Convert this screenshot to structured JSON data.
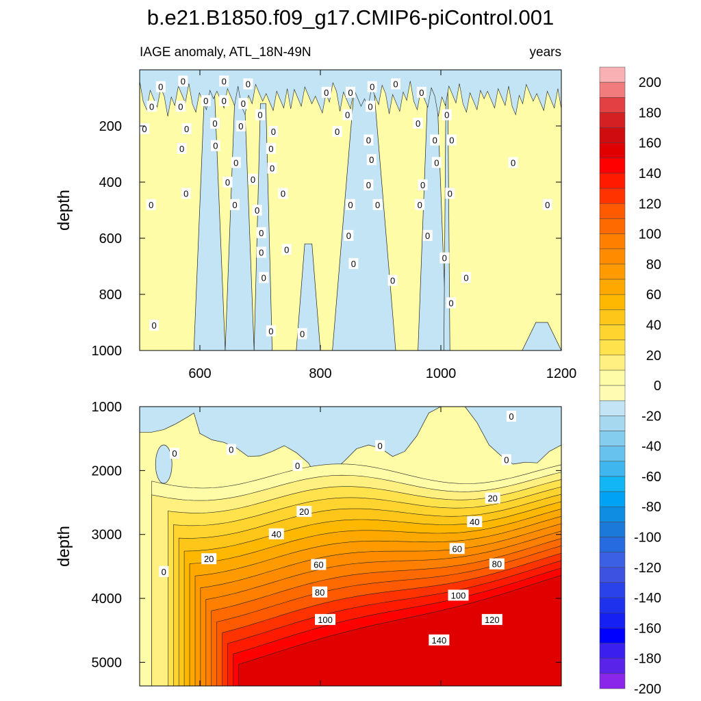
{
  "title": "b.e21.B1850.f09_g17.CMIP6-piControl.001",
  "chart_data": [
    {
      "type": "heatmap",
      "subtitle_left": "IAGE anomaly, ATL_18N-49N",
      "subtitle_right": "years",
      "ylabel": "depth",
      "xlim": [
        500,
        1200
      ],
      "x_ticks": [
        "600",
        "800",
        "1000",
        "1200"
      ],
      "ylim": [
        0,
        1000
      ],
      "y_reversed": true,
      "y_ticks": [
        "200",
        "400",
        "600",
        "800",
        "1000"
      ],
      "negative_bands": [
        {
          "x_start": 590,
          "x_end": 642,
          "y_top": 50,
          "y_bottom": 1000
        },
        {
          "x_start": 642,
          "x_end": 690,
          "y_top": 50,
          "y_bottom": 1000
        },
        {
          "x_start": 690,
          "x_end": 720,
          "y_top": 120,
          "y_bottom": 1000
        },
        {
          "x_start": 760,
          "x_end": 800,
          "y_top": 620,
          "y_bottom": 1000
        },
        {
          "x_start": 820,
          "x_end": 925,
          "y_top": 50,
          "y_bottom": 1000
        },
        {
          "x_start": 962,
          "x_end": 1010,
          "y_top": 50,
          "y_bottom": 1000
        },
        {
          "x_start": 1005,
          "x_end": 1015,
          "y_top": 50,
          "y_bottom": 1000
        },
        {
          "x_start": 1135,
          "x_end": 1200,
          "y_top": 900,
          "y_bottom": 1000
        }
      ],
      "contour_labels": [
        {
          "text": "0",
          "x": 535,
          "y": 60
        },
        {
          "text": "0",
          "x": 572,
          "y": 40
        },
        {
          "text": "0",
          "x": 640,
          "y": 40
        },
        {
          "text": "0",
          "x": 680,
          "y": 50
        },
        {
          "text": "0",
          "x": 520,
          "y": 130
        },
        {
          "text": "0",
          "x": 568,
          "y": 130
        },
        {
          "text": "0",
          "x": 508,
          "y": 210
        },
        {
          "text": "0",
          "x": 610,
          "y": 110
        },
        {
          "text": "0",
          "x": 640,
          "y": 110
        },
        {
          "text": "0",
          "x": 672,
          "y": 120
        },
        {
          "text": "0",
          "x": 700,
          "y": 160
        },
        {
          "text": "0",
          "x": 625,
          "y": 190
        },
        {
          "text": "0",
          "x": 578,
          "y": 210
        },
        {
          "text": "0",
          "x": 668,
          "y": 200
        },
        {
          "text": "0",
          "x": 722,
          "y": 220
        },
        {
          "text": "0",
          "x": 626,
          "y": 270
        },
        {
          "text": "0",
          "x": 570,
          "y": 280
        },
        {
          "text": "0",
          "x": 718,
          "y": 280
        },
        {
          "text": "0",
          "x": 660,
          "y": 330
        },
        {
          "text": "0",
          "x": 720,
          "y": 350
        },
        {
          "text": "0",
          "x": 688,
          "y": 390
        },
        {
          "text": "0",
          "x": 646,
          "y": 400
        },
        {
          "text": "0",
          "x": 577,
          "y": 440
        },
        {
          "text": "0",
          "x": 738,
          "y": 440
        },
        {
          "text": "0",
          "x": 519,
          "y": 480
        },
        {
          "text": "0",
          "x": 658,
          "y": 480
        },
        {
          "text": "0",
          "x": 695,
          "y": 500
        },
        {
          "text": "0",
          "x": 702,
          "y": 580
        },
        {
          "text": "0",
          "x": 702,
          "y": 650
        },
        {
          "text": "0",
          "x": 744,
          "y": 640
        },
        {
          "text": "0",
          "x": 706,
          "y": 740
        },
        {
          "text": "0",
          "x": 718,
          "y": 930
        },
        {
          "text": "0",
          "x": 524,
          "y": 910
        },
        {
          "text": "0",
          "x": 770,
          "y": 940
        },
        {
          "text": "0",
          "x": 810,
          "y": 80
        },
        {
          "text": "0",
          "x": 850,
          "y": 80
        },
        {
          "text": "0",
          "x": 845,
          "y": 160
        },
        {
          "text": "0",
          "x": 828,
          "y": 220
        },
        {
          "text": "0",
          "x": 886,
          "y": 60
        },
        {
          "text": "0",
          "x": 925,
          "y": 50
        },
        {
          "text": "0",
          "x": 883,
          "y": 130
        },
        {
          "text": "0",
          "x": 880,
          "y": 250
        },
        {
          "text": "0",
          "x": 885,
          "y": 320
        },
        {
          "text": "0",
          "x": 880,
          "y": 410
        },
        {
          "text": "0",
          "x": 850,
          "y": 480
        },
        {
          "text": "0",
          "x": 895,
          "y": 480
        },
        {
          "text": "0",
          "x": 847,
          "y": 590
        },
        {
          "text": "0",
          "x": 855,
          "y": 690
        },
        {
          "text": "0",
          "x": 920,
          "y": 750
        },
        {
          "text": "0",
          "x": 968,
          "y": 80
        },
        {
          "text": "0",
          "x": 962,
          "y": 190
        },
        {
          "text": "0",
          "x": 990,
          "y": 250
        },
        {
          "text": "0",
          "x": 1018,
          "y": 250
        },
        {
          "text": "0",
          "x": 1010,
          "y": 160
        },
        {
          "text": "0",
          "x": 993,
          "y": 330
        },
        {
          "text": "0",
          "x": 970,
          "y": 410
        },
        {
          "text": "0",
          "x": 965,
          "y": 480
        },
        {
          "text": "0",
          "x": 1015,
          "y": 440
        },
        {
          "text": "0",
          "x": 978,
          "y": 590
        },
        {
          "text": "0",
          "x": 1006,
          "y": 670
        },
        {
          "text": "0",
          "x": 1042,
          "y": 740
        },
        {
          "text": "0",
          "x": 1017,
          "y": 830
        },
        {
          "text": "0",
          "x": 1120,
          "y": 330
        },
        {
          "text": "0",
          "x": 1177,
          "y": 480
        }
      ]
    },
    {
      "type": "heatmap",
      "ylabel": "depth",
      "xlim": [
        500,
        1200
      ],
      "ylim": [
        1000,
        5370
      ],
      "y_reversed": true,
      "y_ticks": [
        "1000",
        "2000",
        "3000",
        "4000",
        "5000"
      ],
      "contour_levels": [
        0,
        10,
        20,
        30,
        40,
        50,
        60,
        70,
        80,
        90,
        100,
        110,
        120,
        130,
        140,
        150,
        160
      ],
      "zero_line_depth": [
        [
          500,
          1400
        ],
        [
          520,
          1400
        ],
        [
          540,
          1360
        ],
        [
          560,
          1270
        ],
        [
          580,
          1160
        ],
        [
          590,
          1100
        ],
        [
          600,
          1420
        ],
        [
          620,
          1520
        ],
        [
          640,
          1560
        ],
        [
          660,
          1640
        ],
        [
          680,
          1780
        ],
        [
          700,
          1770
        ],
        [
          720,
          1700
        ],
        [
          740,
          1610
        ],
        [
          760,
          1720
        ],
        [
          780,
          1880
        ],
        [
          800,
          2190
        ],
        [
          820,
          2020
        ],
        [
          840,
          1850
        ],
        [
          860,
          1660
        ],
        [
          880,
          1600
        ],
        [
          900,
          1650
        ],
        [
          920,
          1780
        ],
        [
          940,
          1700
        ],
        [
          960,
          1460
        ],
        [
          980,
          1100
        ],
        [
          1000,
          1000
        ],
        [
          1040,
          1000
        ],
        [
          1060,
          1250
        ],
        [
          1080,
          1600
        ],
        [
          1100,
          1770
        ],
        [
          1120,
          1900
        ],
        [
          1140,
          1870
        ],
        [
          1160,
          1880
        ],
        [
          1180,
          1700
        ],
        [
          1200,
          1600
        ]
      ],
      "contour_labels": [
        {
          "text": "0",
          "x": 558,
          "y": 1730
        },
        {
          "text": "0",
          "x": 652,
          "y": 1670
        },
        {
          "text": "0",
          "x": 762,
          "y": 1920
        },
        {
          "text": "0",
          "x": 899,
          "y": 1610
        },
        {
          "text": "0",
          "x": 1117,
          "y": 1150
        },
        {
          "text": "0",
          "x": 1109,
          "y": 1830
        },
        {
          "text": "0",
          "x": 540,
          "y": 3580
        },
        {
          "text": "20",
          "x": 1086,
          "y": 2430
        },
        {
          "text": "20",
          "x": 773,
          "y": 2640
        },
        {
          "text": "20",
          "x": 615,
          "y": 3380
        },
        {
          "text": "40",
          "x": 1056,
          "y": 2800
        },
        {
          "text": "40",
          "x": 727,
          "y": 2990
        },
        {
          "text": "60",
          "x": 1027,
          "y": 3220
        },
        {
          "text": "60",
          "x": 797,
          "y": 3470
        },
        {
          "text": "80",
          "x": 1093,
          "y": 3460
        },
        {
          "text": "80",
          "x": 799,
          "y": 3900
        },
        {
          "text": "100",
          "x": 1029,
          "y": 3950
        },
        {
          "text": "100",
          "x": 808,
          "y": 4330
        },
        {
          "text": "120",
          "x": 1085,
          "y": 4330
        },
        {
          "text": "140",
          "x": 997,
          "y": 4650
        }
      ]
    }
  ],
  "colorbar": {
    "labels": [
      "200",
      "180",
      "160",
      "140",
      "120",
      "100",
      "80",
      "60",
      "40",
      "20",
      "0",
      "-20",
      "-40",
      "-60",
      "-80",
      "-100",
      "-120",
      "-140",
      "-160",
      "-180",
      "-200"
    ],
    "colors": [
      "#f9b1b3",
      "#f07c7e",
      "#e24042",
      "#d42022",
      "#cf0d0f",
      "#e00000",
      "#ff0000",
      "#ff1a00",
      "#ff3300",
      "#ff5a00",
      "#ff6a00",
      "#ff7f00",
      "#ff8c00",
      "#ff9b00",
      "#ffa900",
      "#ffb800",
      "#ffc61a",
      "#ffd42e",
      "#ffe24c",
      "#fff080",
      "#fefca6",
      "#fffbb3",
      "#c2e4f4",
      "#a6d9ef",
      "#84cdee",
      "#67c3ee",
      "#3fb6ee",
      "#12b6f4",
      "#00a2f5",
      "#0e8de3",
      "#1b79d9",
      "#266be0",
      "#3c60e4",
      "#3d52e0",
      "#2a42ea",
      "#1e32ee",
      "#1520f3",
      "#0000ff",
      "#3a1fee",
      "#5a23ea",
      "#8a26ea"
    ]
  }
}
